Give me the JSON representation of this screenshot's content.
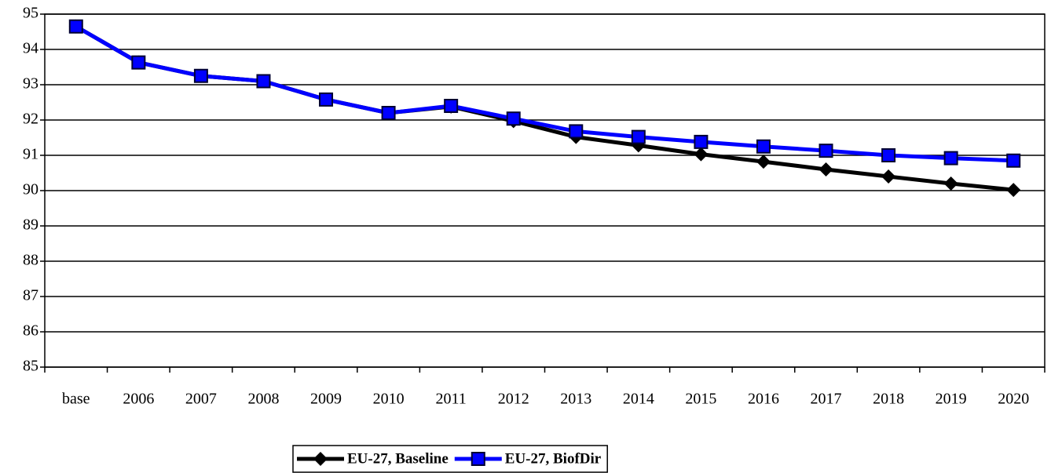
{
  "chart_data": {
    "type": "line",
    "categories": [
      "base",
      "2006",
      "2007",
      "2008",
      "2009",
      "2010",
      "2011",
      "2012",
      "2013",
      "2014",
      "2015",
      "2016",
      "2017",
      "2018",
      "2019",
      "2020"
    ],
    "series": [
      {
        "name": "EU-27, Baseline",
        "color": "#000000",
        "marker": "diamond",
        "values": [
          94.65,
          93.63,
          93.25,
          93.1,
          92.58,
          92.2,
          92.38,
          91.97,
          91.52,
          91.28,
          91.03,
          90.82,
          90.6,
          90.4,
          90.2,
          90.02
        ]
      },
      {
        "name": "EU-27, BiofDir",
        "color": "#0000ff",
        "marker": "square",
        "values": [
          94.65,
          93.63,
          93.25,
          93.1,
          92.58,
          92.2,
          92.4,
          92.04,
          91.68,
          91.52,
          91.38,
          91.25,
          91.13,
          91.0,
          90.92,
          90.85
        ]
      }
    ],
    "ylim": [
      85,
      95
    ],
    "yticks": [
      85,
      86,
      87,
      88,
      89,
      90,
      91,
      92,
      93,
      94,
      95
    ],
    "grid": true,
    "legend": "bottom"
  }
}
